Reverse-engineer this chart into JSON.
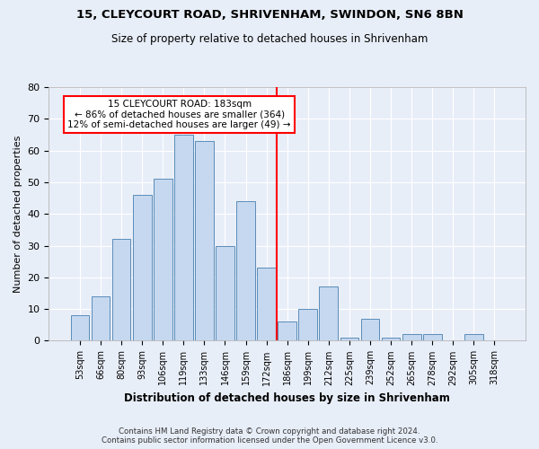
{
  "title_line1": "15, CLEYCOURT ROAD, SHRIVENHAM, SWINDON, SN6 8BN",
  "title_line2": "Size of property relative to detached houses in Shrivenham",
  "xlabel": "Distribution of detached houses by size in Shrivenham",
  "ylabel": "Number of detached properties",
  "bar_labels": [
    "53sqm",
    "66sqm",
    "80sqm",
    "93sqm",
    "106sqm",
    "119sqm",
    "133sqm",
    "146sqm",
    "159sqm",
    "172sqm",
    "186sqm",
    "199sqm",
    "212sqm",
    "225sqm",
    "239sqm",
    "252sqm",
    "265sqm",
    "278sqm",
    "292sqm",
    "305sqm",
    "318sqm"
  ],
  "bar_values": [
    8,
    14,
    32,
    46,
    51,
    65,
    63,
    30,
    44,
    23,
    6,
    10,
    17,
    1,
    7,
    1,
    2,
    2,
    0,
    2,
    0
  ],
  "bar_color": "#c5d8f0",
  "bar_edge_color": "#5b8db8",
  "annotation_text": "15 CLEYCOURT ROAD: 183sqm\n← 86% of detached houses are smaller (364)\n12% of semi-detached houses are larger (49) →",
  "annotation_box_color": "white",
  "annotation_box_edge": "red",
  "marker_line_color": "red",
  "ylim": [
    0,
    80
  ],
  "yticks": [
    0,
    10,
    20,
    30,
    40,
    50,
    60,
    70,
    80
  ],
  "background_color": "#e8eef8",
  "grid_color": "white",
  "footer_line1": "Contains HM Land Registry data © Crown copyright and database right 2024.",
  "footer_line2": "Contains public sector information licensed under the Open Government Licence v3.0."
}
